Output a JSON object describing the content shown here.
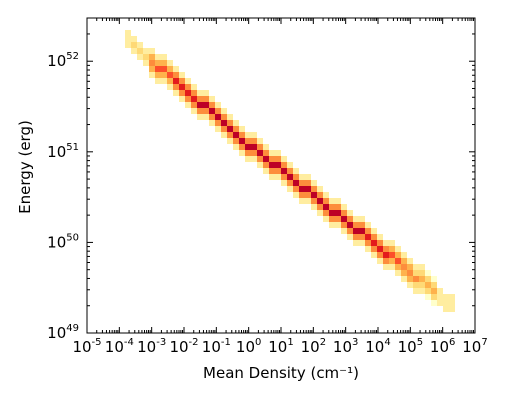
{
  "chart_data": {
    "type": "heatmap",
    "title": "",
    "xlabel": "Mean Density (cm⁻¹)",
    "ylabel": "Energy (erg)",
    "x_scale": "log",
    "y_scale": "log",
    "xlim": [
      1e-05,
      10000000.0
    ],
    "ylim": [
      1e+49,
      3e+52
    ],
    "x_ticks": [
      {
        "base": "10",
        "exp": "-5"
      },
      {
        "base": "10",
        "exp": "-4"
      },
      {
        "base": "10",
        "exp": "-3"
      },
      {
        "base": "10",
        "exp": "-2"
      },
      {
        "base": "10",
        "exp": "-1"
      },
      {
        "base": "10",
        "exp": "0"
      },
      {
        "base": "10",
        "exp": "1"
      },
      {
        "base": "10",
        "exp": "2"
      },
      {
        "base": "10",
        "exp": "3"
      },
      {
        "base": "10",
        "exp": "4"
      },
      {
        "base": "10",
        "exp": "5"
      },
      {
        "base": "10",
        "exp": "6"
      },
      {
        "base": "10",
        "exp": "7"
      }
    ],
    "y_ticks": [
      {
        "base": "10",
        "exp": "49"
      },
      {
        "base": "10",
        "exp": "50"
      },
      {
        "base": "10",
        "exp": "51"
      },
      {
        "base": "10",
        "exp": "52"
      }
    ],
    "grid": false,
    "colormap": [
      "#ffffcc",
      "#ffeda0",
      "#fed976",
      "#feb24c",
      "#fd8d3c",
      "#fc4e2a",
      "#e31a1c",
      "#bd0026"
    ],
    "band": {
      "density_range": [
        0.00015,
        2000000.0
      ],
      "energy_at_density": [
        [
          0.00015,
          1.8e+52
        ],
        [
          1.0,
          1.2e+51
        ],
        [
          10000.0,
          9e+49
        ],
        [
          2000000.0,
          2e+49
        ]
      ],
      "description_of_trend": "energy decreases as a power law of mean density"
    }
  }
}
